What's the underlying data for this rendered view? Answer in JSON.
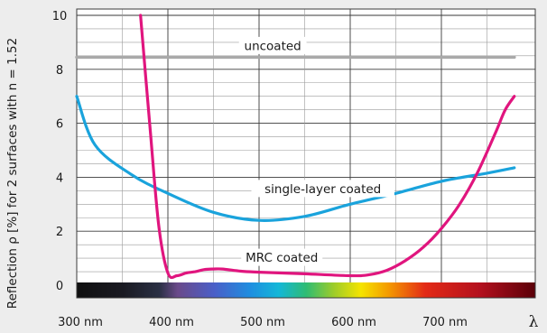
{
  "chart_data": {
    "type": "line",
    "ylabel": "Reflection ρ  [%]  for 2 surfaces with  n = 1.52",
    "x_axis_symbol": "λ",
    "x_ticks": [
      {
        "value": 300,
        "label": "300 nm"
      },
      {
        "value": 400,
        "label": "400 nm"
      },
      {
        "value": 500,
        "label": "500 nm"
      },
      {
        "value": 600,
        "label": "600 nm"
      },
      {
        "value": 700,
        "label": "700 nm"
      }
    ],
    "y_ticks": [
      {
        "value": 0,
        "label": "0"
      },
      {
        "value": 2,
        "label": "2"
      },
      {
        "value": 4,
        "label": "4"
      },
      {
        "value": 6,
        "label": "6"
      },
      {
        "value": 8,
        "label": "8"
      },
      {
        "value": 10,
        "label": "10"
      }
    ],
    "xlim": [
      280,
      780
    ],
    "ylim": [
      0,
      10
    ],
    "grid": true,
    "spectrum_bar": true,
    "series": [
      {
        "name": "uncoated",
        "color": "#a9a9a9",
        "x": [
          280,
          780
        ],
        "y": [
          8.45,
          8.45
        ]
      },
      {
        "name": "single-layer coated",
        "color": "#1aa3dc",
        "x": [
          280,
          320,
          360,
          400,
          450,
          500,
          550,
          600,
          650,
          700,
          750,
          780
        ],
        "y": [
          7.0,
          5.2,
          4.1,
          3.4,
          2.7,
          2.4,
          2.55,
          3.0,
          3.4,
          3.85,
          4.15,
          4.35
        ]
      },
      {
        "name": "MRC coated",
        "color": "#e0157e",
        "x": [
          370,
          380,
          390,
          400,
          410,
          420,
          430,
          440,
          450,
          460,
          480,
          500,
          550,
          600,
          620,
          640,
          660,
          680,
          700,
          720,
          740,
          760,
          770,
          780
        ],
        "y": [
          10.0,
          6.0,
          2.2,
          0.45,
          0.35,
          0.45,
          0.5,
          0.58,
          0.6,
          0.6,
          0.52,
          0.48,
          0.42,
          0.35,
          0.38,
          0.55,
          0.9,
          1.4,
          2.1,
          3.0,
          4.2,
          5.7,
          6.5,
          7.0
        ]
      }
    ],
    "annotations": [
      {
        "text": "uncoated",
        "series": "uncoated",
        "x": 515,
        "y": 8.85
      },
      {
        "text": "single-layer coated",
        "series": "single-layer coated",
        "x": 570,
        "y": 3.55
      },
      {
        "text": "MRC coated",
        "series": "MRC coated",
        "x": 525,
        "y": 1.0
      }
    ]
  }
}
